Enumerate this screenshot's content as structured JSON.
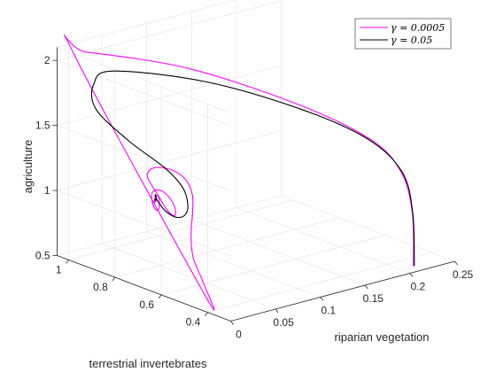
{
  "chart_data": {
    "type": "line",
    "title": "",
    "axis_labels": {
      "x": "riparian vegetation",
      "y": "terrestrial invertebrates",
      "z": "agriculture"
    },
    "axes": {
      "x": {
        "ticks": [
          0,
          0.05,
          0.1,
          0.15,
          0.2,
          0.25
        ],
        "tick_labels": [
          "0",
          "0.05",
          "0.1",
          "0.15",
          "0.2",
          "0.25"
        ],
        "range": [
          0,
          0.25
        ]
      },
      "y": {
        "ticks": [
          0.4,
          0.6,
          0.8,
          1.0
        ],
        "tick_labels": [
          "0.4",
          "0.6",
          "0.8",
          "1"
        ],
        "range": [
          0.3,
          1.05
        ]
      },
      "z": {
        "ticks": [
          0.5,
          1,
          1.5,
          2
        ],
        "tick_labels": [
          "0.5",
          "1",
          "1.5",
          "2"
        ],
        "range": [
          0.5,
          2.1
        ]
      }
    },
    "grid": true,
    "legend_position": "top-right",
    "series": [
      {
        "name": "γ = 0.0005",
        "color": "#ff00ff",
        "description": "long-transient trajectory spiralling slowly into an equilibrium",
        "points": [
          [
            0.2085,
            0.318,
            0.525
          ],
          [
            0.2155,
            0.35,
            0.9
          ],
          [
            0.216,
            0.4,
            1.18
          ],
          [
            0.203,
            0.48,
            1.4
          ],
          [
            0.16,
            0.63,
            1.65
          ],
          [
            0.09,
            0.83,
            1.92
          ],
          [
            0.02,
            1.0,
            2.06
          ],
          [
            0.006,
            1.0,
            2.07
          ],
          [
            0.005,
            0.43,
            0.6
          ],
          [
            0.007,
            0.45,
            0.7
          ],
          [
            0.015,
            0.52,
            0.81
          ],
          [
            0.028,
            0.58,
            0.92
          ],
          [
            0.04,
            0.62,
            1.04
          ],
          [
            0.045,
            0.64,
            1.16
          ],
          [
            0.04,
            0.65,
            1.28
          ],
          [
            0.027,
            0.66,
            1.37
          ],
          [
            0.013,
            0.68,
            1.4
          ],
          [
            0.005,
            0.68,
            1.35
          ],
          [
            0.004,
            0.63,
            1.24
          ],
          [
            0.009,
            0.61,
            1.13
          ],
          [
            0.019,
            0.62,
            1.06
          ],
          [
            0.029,
            0.65,
            1.05
          ],
          [
            0.033,
            0.68,
            1.1
          ],
          [
            0.03,
            0.7,
            1.16
          ],
          [
            0.022,
            0.7,
            1.2
          ],
          [
            0.013,
            0.69,
            1.2
          ],
          [
            0.008,
            0.67,
            1.15
          ],
          [
            0.009,
            0.66,
            1.1
          ],
          [
            0.015,
            0.67,
            1.08
          ],
          [
            0.021,
            0.69,
            1.1
          ],
          [
            0.023,
            0.7,
            1.14
          ],
          [
            0.02,
            0.7,
            1.16
          ],
          [
            0.016,
            0.69,
            1.15
          ],
          [
            0.014,
            0.685,
            1.13
          ],
          [
            0.016,
            0.69,
            1.12
          ],
          [
            0.018,
            0.695,
            1.13
          ],
          [
            0.0175,
            0.695,
            1.14
          ],
          [
            0.017,
            0.693,
            1.135
          ]
        ]
      },
      {
        "name": "γ = 0.05",
        "color": "#000000",
        "description": "trajectory converging faster to the same equilibrium",
        "points": [
          [
            0.21,
            0.32,
            0.525
          ],
          [
            0.216,
            0.35,
            0.9
          ],
          [
            0.217,
            0.4,
            1.18
          ],
          [
            0.202,
            0.49,
            1.4
          ],
          [
            0.165,
            0.63,
            1.6
          ],
          [
            0.11,
            0.83,
            1.78
          ],
          [
            0.05,
            1.0,
            1.86
          ],
          [
            0.028,
            1.0,
            1.8
          ],
          [
            0.02,
            0.96,
            1.65
          ],
          [
            0.025,
            0.84,
            1.48
          ],
          [
            0.035,
            0.72,
            1.33
          ],
          [
            0.042,
            0.67,
            1.2
          ],
          [
            0.04,
            0.64,
            1.09
          ],
          [
            0.034,
            0.63,
            1.03
          ],
          [
            0.027,
            0.64,
            1.02
          ],
          [
            0.021,
            0.66,
            1.06
          ],
          [
            0.018,
            0.68,
            1.12
          ],
          [
            0.0175,
            0.693,
            1.16
          ],
          [
            0.019,
            0.7,
            1.17
          ],
          [
            0.02,
            0.7,
            1.15
          ],
          [
            0.0185,
            0.695,
            1.13
          ],
          [
            0.017,
            0.69,
            1.13
          ],
          [
            0.017,
            0.693,
            1.14
          ],
          [
            0.0172,
            0.6935,
            1.137
          ]
        ]
      }
    ]
  }
}
